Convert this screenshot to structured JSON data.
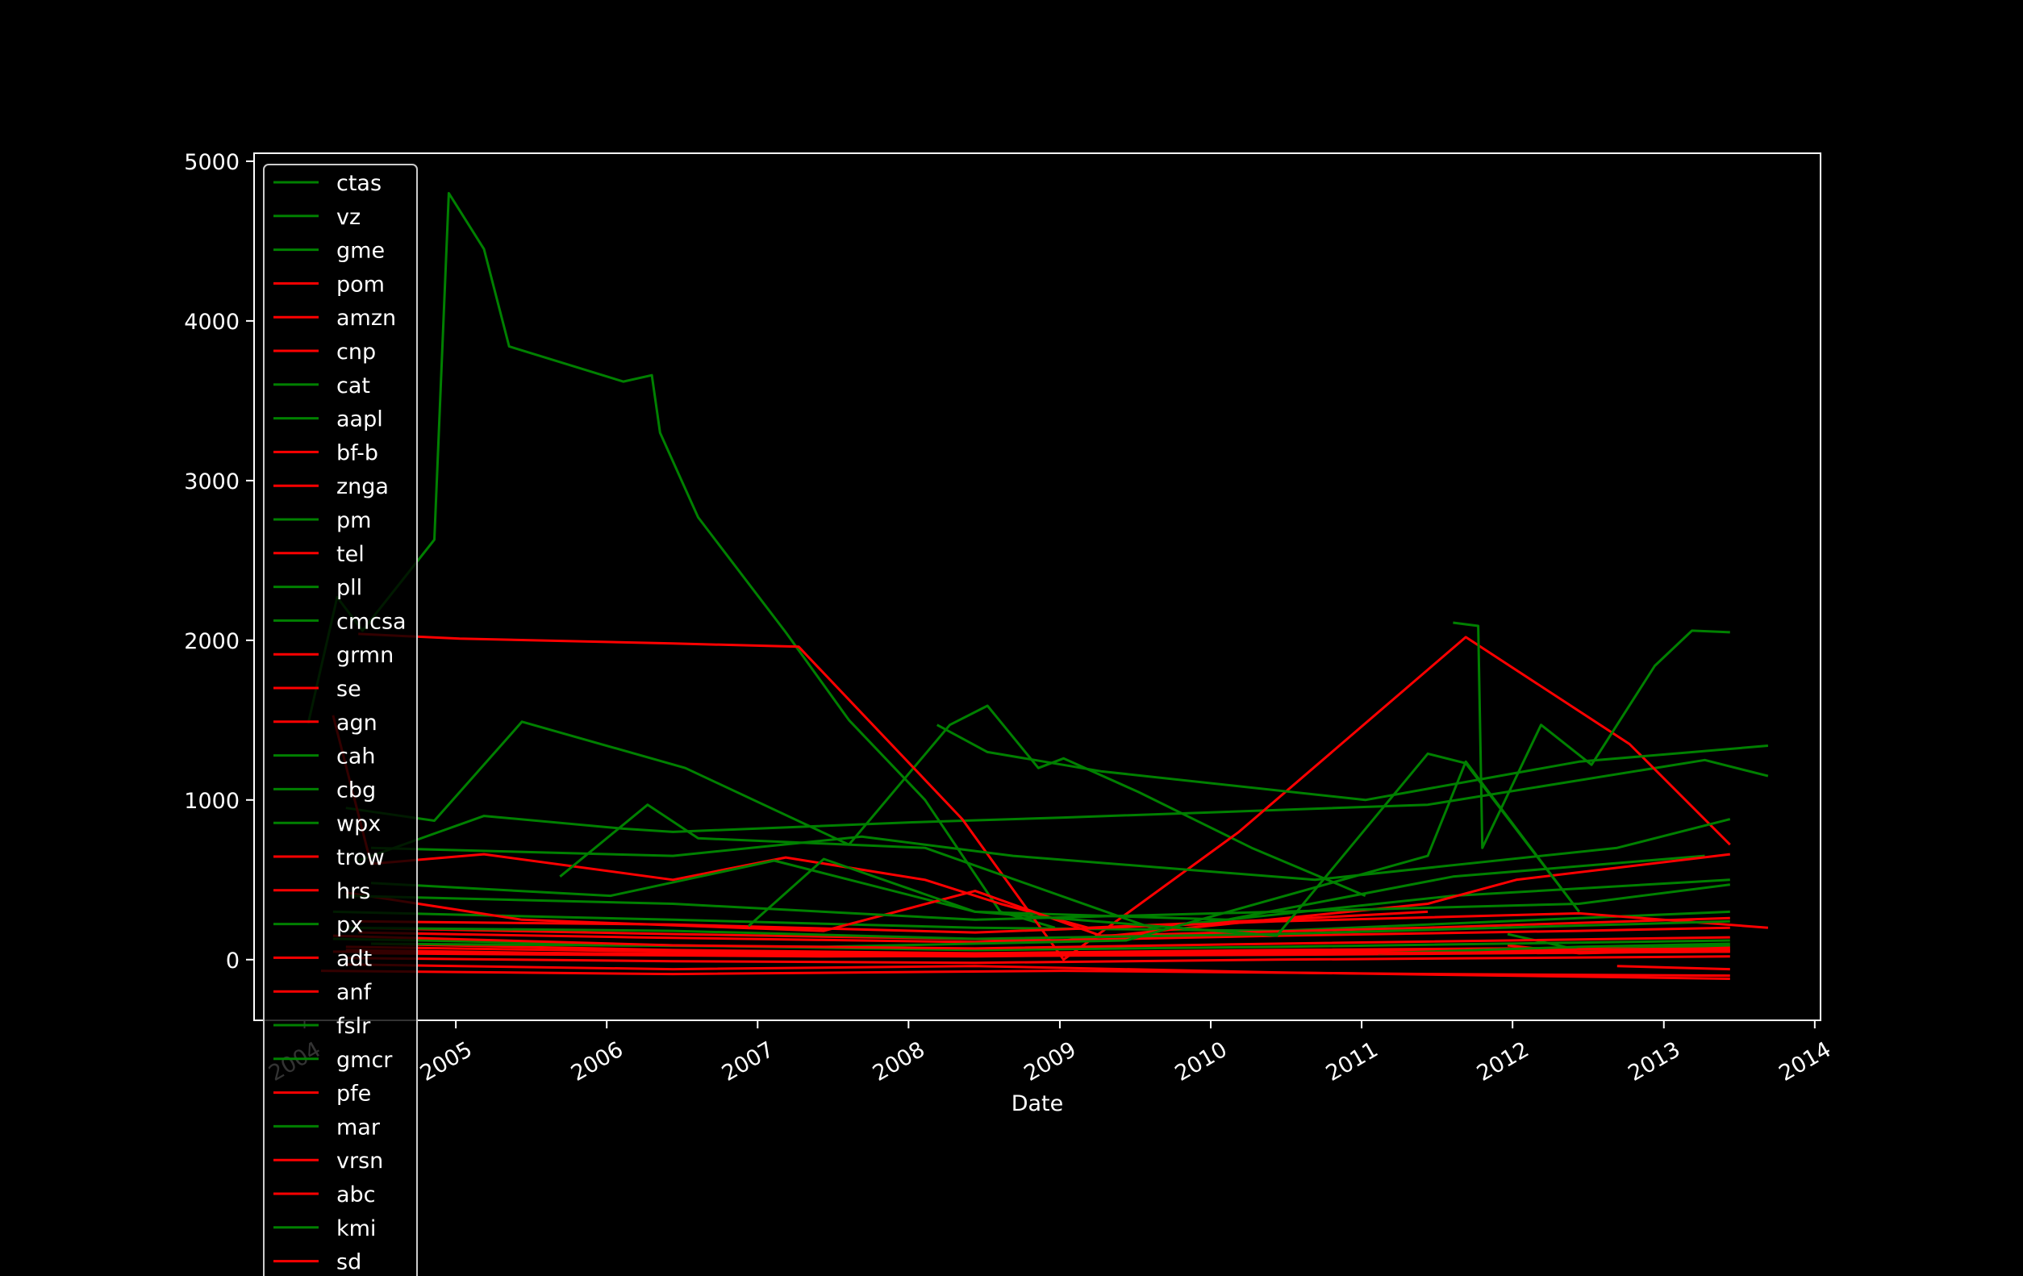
{
  "chart_data": {
    "type": "line",
    "title": "",
    "xlabel": "Date",
    "ylabel": "",
    "xlim": [
      "2003-09-01",
      "2014-01-15"
    ],
    "ylim": [
      -380,
      5050
    ],
    "x_ticks": [
      "2004",
      "2005",
      "2006",
      "2007",
      "2008",
      "2009",
      "2010",
      "2011",
      "2012",
      "2013",
      "2014"
    ],
    "y_ticks": [
      0,
      1000,
      2000,
      3000,
      4000,
      5000
    ],
    "grid": false,
    "legend_position": "top-left",
    "colors": {
      "background": "#000000",
      "axes": "#ffffff",
      "text": "#ffffff",
      "up": "#008000",
      "down": "#ff0000"
    },
    "series": [
      {
        "name": "ctas",
        "color": "#008000",
        "points": [
          [
            "2004-01-10",
            1480
          ],
          [
            "2004-03-20",
            2270
          ],
          [
            "2004-05-20",
            2060
          ],
          [
            "2004-11-10",
            2630
          ],
          [
            "2004-12-15",
            4800
          ],
          [
            "2005-03-10",
            4450
          ],
          [
            "2005-05-10",
            3840
          ],
          [
            "2006-02-10",
            3620
          ],
          [
            "2006-04-20",
            3660
          ],
          [
            "2006-05-10",
            3300
          ],
          [
            "2006-08-10",
            2770
          ],
          [
            "2007-03-10",
            2050
          ],
          [
            "2007-08-10",
            1500
          ],
          [
            "2008-02-10",
            1000
          ],
          [
            "2008-08-10",
            300
          ],
          [
            "2008-12-20",
            200
          ]
        ]
      },
      {
        "name": "vz",
        "color": "#008000",
        "points": [
          [
            "2004-04-10",
            950
          ],
          [
            "2004-11-10",
            870
          ],
          [
            "2005-06-10",
            1490
          ],
          [
            "2006-07-10",
            1200
          ],
          [
            "2007-08-10",
            720
          ],
          [
            "2008-04-10",
            1470
          ],
          [
            "2008-07-10",
            1590
          ],
          [
            "2008-11-10",
            1200
          ],
          [
            "2009-01-10",
            1260
          ],
          [
            "2009-07-10",
            1050
          ],
          [
            "2010-04-10",
            700
          ],
          [
            "2011-01-10",
            400
          ]
        ]
      },
      {
        "name": "gme",
        "color": "#008000",
        "points": [
          [
            "2004-05-10",
            620
          ],
          [
            "2005-03-10",
            900
          ],
          [
            "2006-02-10",
            820
          ],
          [
            "2006-06-10",
            800
          ],
          [
            "2008-01-10",
            860
          ],
          [
            "2009-01-10",
            890
          ],
          [
            "2011-06-10",
            970
          ],
          [
            "2013-04-10",
            1250
          ],
          [
            "2013-09-10",
            1150
          ]
        ]
      },
      {
        "name": "pom",
        "color": "#ff0000",
        "points": [
          [
            "2004-03-10",
            1530
          ],
          [
            "2004-06-10",
            600
          ],
          [
            "2005-03-10",
            660
          ],
          [
            "2006-06-10",
            500
          ],
          [
            "2007-03-10",
            640
          ],
          [
            "2008-02-10",
            500
          ],
          [
            "2008-08-10",
            350
          ],
          [
            "2009-03-10",
            200
          ],
          [
            "2010-06-10",
            250
          ],
          [
            "2011-06-10",
            300
          ]
        ]
      },
      {
        "name": "amzn",
        "color": "#ff0000",
        "points": [
          [
            "2004-05-10",
            2040
          ],
          [
            "2005-01-10",
            2010
          ],
          [
            "2006-06-10",
            1980
          ],
          [
            "2007-04-10",
            1960
          ],
          [
            "2008-05-10",
            880
          ],
          [
            "2009-01-10",
            0
          ],
          [
            "2010-03-10",
            800
          ],
          [
            "2011-09-10",
            2020
          ],
          [
            "2012-10-10",
            1350
          ],
          [
            "2013-06-10",
            720
          ]
        ]
      },
      {
        "name": "cnp",
        "color": "#ff0000",
        "points": [
          [
            "2004-02-10",
            -70
          ],
          [
            "2006-06-10",
            -90
          ],
          [
            "2009-01-10",
            -70
          ],
          [
            "2011-06-10",
            -90
          ],
          [
            "2013-06-10",
            -100
          ]
        ]
      },
      {
        "name": "cat",
        "color": "#008000",
        "points": [
          [
            "2004-06-10",
            480
          ],
          [
            "2006-01-10",
            400
          ],
          [
            "2007-02-10",
            620
          ],
          [
            "2008-06-10",
            300
          ],
          [
            "2010-02-10",
            250
          ],
          [
            "2011-08-10",
            520
          ],
          [
            "2013-04-10",
            650
          ]
        ]
      },
      {
        "name": "aapl",
        "color": "#008000",
        "points": [
          [
            "2011-08-10",
            2110
          ],
          [
            "2011-10-10",
            2090
          ],
          [
            "2011-10-20",
            700
          ],
          [
            "2012-03-10",
            1470
          ],
          [
            "2012-07-10",
            1220
          ],
          [
            "2012-12-10",
            1840
          ],
          [
            "2013-03-10",
            2060
          ],
          [
            "2013-06-10",
            2050
          ]
        ]
      },
      {
        "name": "bf-b",
        "color": "#ff0000",
        "points": [
          [
            "2004-05-10",
            170
          ],
          [
            "2006-03-10",
            140
          ],
          [
            "2008-06-10",
            110
          ],
          [
            "2010-06-10",
            150
          ],
          [
            "2012-06-10",
            180
          ],
          [
            "2013-06-10",
            200
          ]
        ]
      },
      {
        "name": "znga",
        "color": "#ff0000",
        "points": [
          [
            "2011-12-20",
            90
          ],
          [
            "2012-06-10",
            40
          ],
          [
            "2013-06-10",
            60
          ]
        ]
      },
      {
        "name": "pm",
        "color": "#008000",
        "points": [
          [
            "2008-03-10",
            1470
          ],
          [
            "2008-07-10",
            1300
          ],
          [
            "2009-04-10",
            1180
          ],
          [
            "2011-01-10",
            1000
          ],
          [
            "2012-06-10",
            1240
          ],
          [
            "2013-09-10",
            1340
          ]
        ]
      },
      {
        "name": "tel",
        "color": "#ff0000",
        "points": [
          [
            "2004-06-10",
            100
          ],
          [
            "2006-06-10",
            60
          ],
          [
            "2008-06-10",
            40
          ],
          [
            "2010-06-10",
            60
          ],
          [
            "2013-06-10",
            80
          ]
        ]
      },
      {
        "name": "pll",
        "color": "#008000",
        "points": [
          [
            "2005-09-10",
            520
          ],
          [
            "2006-04-10",
            970
          ],
          [
            "2006-08-10",
            760
          ],
          [
            "2008-02-10",
            700
          ],
          [
            "2009-08-10",
            200
          ],
          [
            "2011-08-10",
            400
          ],
          [
            "2013-06-10",
            500
          ]
        ]
      },
      {
        "name": "cmcsa",
        "color": "#008000",
        "points": [
          [
            "2004-03-10",
            300
          ],
          [
            "2006-06-10",
            250
          ],
          [
            "2008-06-10",
            200
          ],
          [
            "2010-06-10",
            180
          ],
          [
            "2012-06-10",
            260
          ],
          [
            "2013-06-10",
            300
          ]
        ]
      },
      {
        "name": "grmn",
        "color": "#ff0000",
        "points": [
          [
            "2004-04-10",
            420
          ],
          [
            "2005-06-10",
            250
          ],
          [
            "2007-06-10",
            180
          ],
          [
            "2008-06-10",
            430
          ],
          [
            "2009-04-10",
            150
          ],
          [
            "2011-06-10",
            200
          ],
          [
            "2013-06-10",
            260
          ]
        ]
      },
      {
        "name": "se",
        "color": "#ff0000",
        "points": [
          [
            "2004-03-10",
            50
          ],
          [
            "2007-06-10",
            30
          ],
          [
            "2010-06-10",
            40
          ],
          [
            "2013-06-10",
            60
          ]
        ]
      },
      {
        "name": "agn",
        "color": "#ff0000",
        "points": [
          [
            "2004-04-10",
            200
          ],
          [
            "2006-06-10",
            160
          ],
          [
            "2009-01-10",
            120
          ],
          [
            "2011-06-10",
            350
          ],
          [
            "2012-01-10",
            500
          ],
          [
            "2013-06-10",
            660
          ]
        ]
      },
      {
        "name": "cah",
        "color": "#008000",
        "points": [
          [
            "2004-06-10",
            700
          ],
          [
            "2006-06-10",
            650
          ],
          [
            "2007-09-10",
            770
          ],
          [
            "2008-09-10",
            650
          ],
          [
            "2010-09-10",
            500
          ],
          [
            "2012-09-10",
            700
          ],
          [
            "2013-06-10",
            880
          ]
        ]
      },
      {
        "name": "cbg",
        "color": "#008000",
        "points": [
          [
            "2004-03-10",
            130
          ],
          [
            "2006-06-10",
            90
          ],
          [
            "2008-06-10",
            60
          ],
          [
            "2010-06-10",
            80
          ],
          [
            "2013-06-10",
            120
          ]
        ]
      },
      {
        "name": "wpx",
        "color": "#008000",
        "points": [
          [
            "2011-12-20",
            160
          ],
          [
            "2012-06-10",
            60
          ],
          [
            "2013-06-10",
            90
          ]
        ]
      },
      {
        "name": "trow",
        "color": "#ff0000",
        "points": [
          [
            "2004-05-10",
            240
          ],
          [
            "2006-06-10",
            220
          ],
          [
            "2008-06-10",
            170
          ],
          [
            "2010-06-10",
            240
          ],
          [
            "2012-06-10",
            290
          ],
          [
            "2013-09-10",
            200
          ]
        ]
      },
      {
        "name": "hrs",
        "color": "#ff0000",
        "points": [
          [
            "2004-04-10",
            80
          ],
          [
            "2006-06-10",
            50
          ],
          [
            "2008-06-10",
            30
          ],
          [
            "2010-06-10",
            50
          ],
          [
            "2013-06-10",
            70
          ]
        ]
      },
      {
        "name": "px",
        "color": "#008000",
        "points": [
          [
            "2004-04-10",
            400
          ],
          [
            "2006-06-10",
            350
          ],
          [
            "2008-06-10",
            250
          ],
          [
            "2010-06-10",
            300
          ],
          [
            "2012-06-10",
            350
          ],
          [
            "2013-06-10",
            470
          ]
        ]
      },
      {
        "name": "adt",
        "color": "#ff0000",
        "points": [
          [
            "2012-09-10",
            -40
          ],
          [
            "2013-06-10",
            -60
          ]
        ]
      },
      {
        "name": "anf",
        "color": "#ff0000",
        "points": [
          [
            "2004-04-10",
            -30
          ],
          [
            "2006-06-10",
            -60
          ],
          [
            "2008-06-10",
            -40
          ],
          [
            "2010-06-10",
            -80
          ],
          [
            "2013-06-10",
            -120
          ]
        ]
      },
      {
        "name": "fslr",
        "color": "#008000",
        "points": [
          [
            "2006-12-10",
            210
          ],
          [
            "2007-06-10",
            630
          ],
          [
            "2008-06-10",
            300
          ],
          [
            "2010-06-10",
            150
          ],
          [
            "2011-06-10",
            1290
          ],
          [
            "2011-09-10",
            1230
          ],
          [
            "2012-06-10",
            300
          ]
        ]
      },
      {
        "name": "gmcr",
        "color": "#008000",
        "points": [
          [
            "2004-06-10",
            100
          ],
          [
            "2007-06-10",
            80
          ],
          [
            "2009-06-10",
            120
          ],
          [
            "2011-06-10",
            650
          ],
          [
            "2011-09-10",
            1240
          ],
          [
            "2012-06-10",
            300
          ]
        ]
      },
      {
        "name": "pfe",
        "color": "#ff0000",
        "points": [
          [
            "2004-04-10",
            10
          ],
          [
            "2006-06-10",
            -10
          ],
          [
            "2008-06-10",
            -20
          ],
          [
            "2010-06-10",
            0
          ],
          [
            "2013-06-10",
            20
          ]
        ]
      },
      {
        "name": "mar",
        "color": "#008000",
        "points": [
          [
            "2004-04-10",
            200
          ],
          [
            "2006-06-10",
            180
          ],
          [
            "2008-06-10",
            130
          ],
          [
            "2010-06-10",
            160
          ],
          [
            "2013-06-10",
            240
          ]
        ]
      },
      {
        "name": "vrsn",
        "color": "#ff0000",
        "points": [
          [
            "2004-03-10",
            150
          ],
          [
            "2006-06-10",
            90
          ],
          [
            "2008-06-10",
            70
          ],
          [
            "2010-06-10",
            100
          ],
          [
            "2013-06-10",
            140
          ]
        ]
      },
      {
        "name": "abc",
        "color": "#ff0000",
        "points": [
          [
            "2004-06-10",
            40
          ],
          [
            "2007-06-10",
            20
          ],
          [
            "2010-06-10",
            30
          ],
          [
            "2013-06-10",
            50
          ]
        ]
      },
      {
        "name": "kmi",
        "color": "#008000",
        "points": [
          [
            "2011-02-10",
            40
          ],
          [
            "2012-06-10",
            80
          ],
          [
            "2013-06-10",
            100
          ]
        ]
      },
      {
        "name": "sd",
        "color": "#ff0000",
        "points": [
          [
            "2004-04-10",
            60
          ],
          [
            "2006-06-10",
            30
          ],
          [
            "2008-06-10",
            20
          ],
          [
            "2010-06-10",
            40
          ],
          [
            "2013-06-10",
            50
          ]
        ]
      }
    ]
  }
}
